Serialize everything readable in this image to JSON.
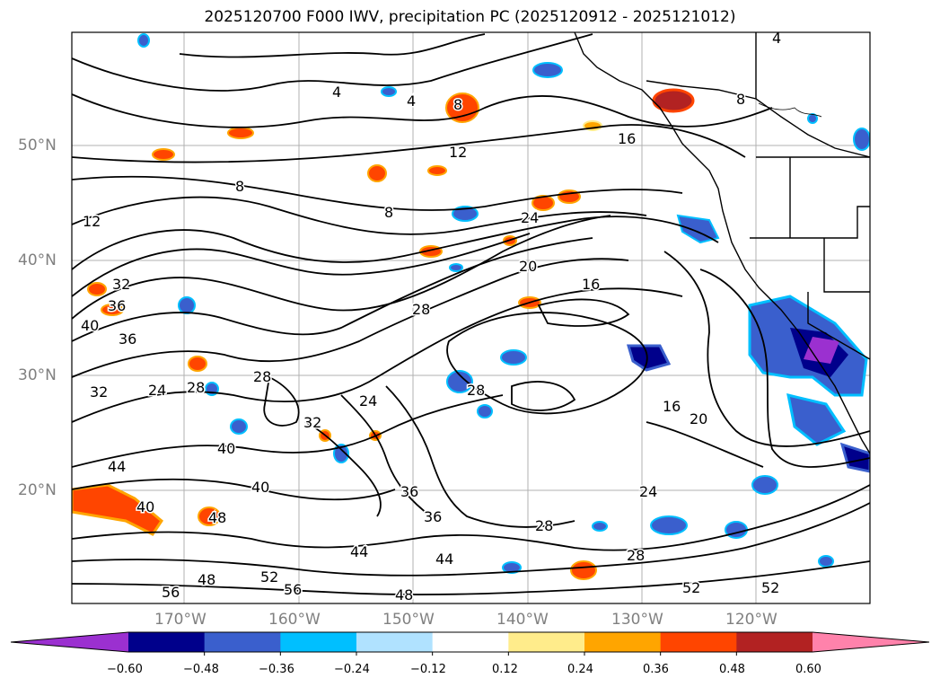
{
  "title": "2025120700 F000 IWV, precipitation PC (2025120912 - 2025121012)",
  "lat_labels": [
    "50°N",
    "40°N",
    "30°N",
    "20°N"
  ],
  "lon_labels": [
    "170°W",
    "160°W",
    "150°W",
    "140°W",
    "130°W",
    "120°W"
  ],
  "contour_labels": [
    "4",
    "4",
    "4",
    "8",
    "8",
    "8",
    "8",
    "12",
    "12",
    "16",
    "16",
    "16",
    "20",
    "20",
    "24",
    "24",
    "24",
    "24",
    "28",
    "28",
    "28",
    "28",
    "28",
    "28",
    "32",
    "32",
    "32",
    "36",
    "36",
    "36",
    "36",
    "40",
    "40",
    "40",
    "40",
    "44",
    "44",
    "44",
    "48",
    "48",
    "48",
    "52",
    "52",
    "52",
    "56",
    "56"
  ],
  "colorbar": {
    "ticks": [
      "−0.60",
      "−0.48",
      "−0.36",
      "−0.24",
      "−0.12",
      "0.12",
      "0.24",
      "0.36",
      "0.48",
      "0.60"
    ],
    "colors": [
      "#9b30d0",
      "#00008b",
      "#3a5fcd",
      "#00bfff",
      "#b0e2ff",
      "#ffffff",
      "#ffec8b",
      "#ffa500",
      "#ff4500",
      "#b22222",
      "#ff82ab"
    ]
  }
}
